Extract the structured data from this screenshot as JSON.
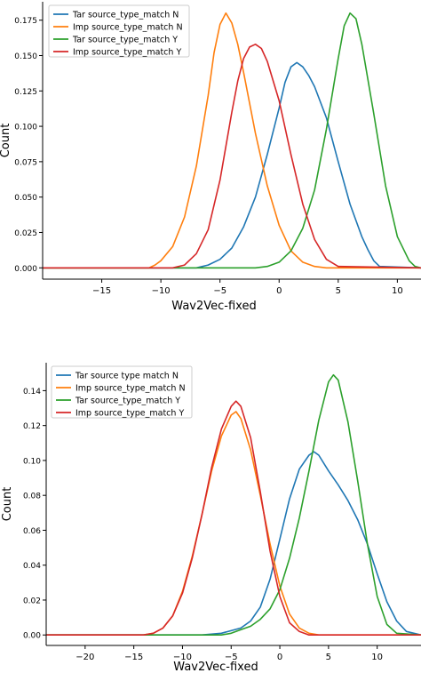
{
  "chart_data": [
    {
      "type": "line",
      "xlabel": "Wav2Vec-fixed",
      "ylabel": "Count",
      "xlim": [
        -20,
        12
      ],
      "ylim": [
        -0.008,
        0.188
      ],
      "xticks": [
        -15,
        -10,
        -5,
        0,
        5,
        10
      ],
      "xtick_labels": [
        "−15",
        "−10",
        "−5",
        "0",
        "5",
        "10"
      ],
      "yticks": [
        0.0,
        0.025,
        0.05,
        0.075,
        0.1,
        0.125,
        0.15,
        0.175
      ],
      "ytick_labels": [
        "0.000",
        "0.025",
        "0.050",
        "0.075",
        "0.100",
        "0.125",
        "0.150",
        "0.175"
      ],
      "grid": false,
      "legend_position": "top-left",
      "series": [
        {
          "name": "Tar source_type_match N",
          "color": "#1f77b4",
          "x": [
            -20,
            -7,
            -6,
            -5,
            -4,
            -3,
            -2,
            -1,
            0,
            0.5,
            1,
            1.5,
            2,
            2.5,
            3,
            4,
            5,
            6,
            7,
            7.5,
            8,
            8.5,
            12
          ],
          "y": [
            0,
            0,
            0.002,
            0.006,
            0.014,
            0.029,
            0.05,
            0.08,
            0.113,
            0.131,
            0.142,
            0.145,
            0.142,
            0.136,
            0.128,
            0.106,
            0.075,
            0.045,
            0.022,
            0.013,
            0.005,
            0.001,
            0
          ]
        },
        {
          "name": "Imp source_type_match N",
          "color": "#ff7f0e",
          "x": [
            -20,
            -11,
            -10.5,
            -10,
            -9,
            -8,
            -7,
            -6,
            -5.5,
            -5,
            -4.5,
            -4,
            -3.5,
            -3,
            -2,
            -1,
            0,
            1,
            2,
            3,
            4,
            12
          ],
          "y": [
            0,
            0,
            0.002,
            0.005,
            0.015,
            0.036,
            0.072,
            0.122,
            0.152,
            0.172,
            0.18,
            0.173,
            0.158,
            0.138,
            0.095,
            0.058,
            0.03,
            0.012,
            0.004,
            0.001,
            0,
            0
          ]
        },
        {
          "name": "Tar source_type_match Y",
          "color": "#2ca02c",
          "x": [
            -20,
            -2,
            -1,
            0,
            1,
            2,
            3,
            4,
            5,
            5.5,
            6,
            6.5,
            7,
            8,
            9,
            10,
            11,
            11.5,
            12
          ],
          "y": [
            0,
            0,
            0.001,
            0.004,
            0.012,
            0.028,
            0.055,
            0.098,
            0.148,
            0.171,
            0.18,
            0.176,
            0.158,
            0.109,
            0.058,
            0.022,
            0.005,
            0.001,
            0
          ]
        },
        {
          "name": "Imp source_type_match Y",
          "color": "#d62728",
          "x": [
            -20,
            -9,
            -8,
            -7,
            -6,
            -5,
            -4,
            -3.5,
            -3,
            -2.5,
            -2,
            -1.5,
            -1,
            0,
            1,
            2,
            3,
            4,
            5,
            12
          ],
          "y": [
            0,
            0,
            0.002,
            0.01,
            0.027,
            0.062,
            0.11,
            0.132,
            0.148,
            0.156,
            0.158,
            0.155,
            0.146,
            0.118,
            0.08,
            0.045,
            0.02,
            0.006,
            0.001,
            0
          ]
        }
      ]
    },
    {
      "type": "line",
      "xlabel": "Wav2Vec-fixed",
      "ylabel": "Count",
      "xlim": [
        -24,
        14.5
      ],
      "ylim": [
        -0.006,
        0.156
      ],
      "xticks": [
        -20,
        -15,
        -10,
        -5,
        0,
        5,
        10
      ],
      "xtick_labels": [
        "−20",
        "−15",
        "−10",
        "−5",
        "0",
        "5",
        "10"
      ],
      "yticks": [
        0.0,
        0.02,
        0.04,
        0.06,
        0.08,
        0.1,
        0.12,
        0.14
      ],
      "ytick_labels": [
        "0.00",
        "0.02",
        "0.04",
        "0.06",
        "0.08",
        "0.10",
        "0.12",
        "0.14"
      ],
      "grid": false,
      "legend_position": "top-left",
      "series": [
        {
          "name": "Tar source type match N",
          "color": "#1f77b4",
          "x": [
            -24,
            -8,
            -6,
            -4,
            -3,
            -2,
            -1,
            0,
            1,
            2,
            3,
            3.5,
            4,
            5,
            6,
            7,
            8,
            9,
            10,
            11,
            12,
            13,
            14.5
          ],
          "y": [
            0,
            0,
            0.001,
            0.004,
            0.008,
            0.016,
            0.032,
            0.055,
            0.078,
            0.095,
            0.103,
            0.105,
            0.103,
            0.094,
            0.086,
            0.077,
            0.066,
            0.052,
            0.035,
            0.019,
            0.008,
            0.002,
            0
          ]
        },
        {
          "name": "Imp source_type_match N",
          "color": "#ff7f0e",
          "x": [
            -24,
            -14,
            -13,
            -12,
            -11,
            -10,
            -9,
            -8,
            -7,
            -6,
            -5,
            -4.5,
            -4,
            -3,
            -2,
            -1,
            0,
            1,
            2,
            3,
            4,
            14.5
          ],
          "y": [
            0,
            0,
            0.001,
            0.004,
            0.011,
            0.025,
            0.045,
            0.069,
            0.094,
            0.114,
            0.126,
            0.128,
            0.124,
            0.106,
            0.08,
            0.052,
            0.028,
            0.012,
            0.004,
            0.001,
            0,
            0
          ]
        },
        {
          "name": "Tar source_type_match Y",
          "color": "#2ca02c",
          "x": [
            -24,
            -6,
            -5,
            -4,
            -3,
            -2,
            -1,
            0,
            1,
            2,
            3,
            4,
            5,
            5.5,
            6,
            7,
            8,
            9,
            10,
            11,
            12,
            14.5
          ],
          "y": [
            0,
            0,
            0.001,
            0.003,
            0.005,
            0.009,
            0.015,
            0.026,
            0.044,
            0.067,
            0.094,
            0.123,
            0.145,
            0.149,
            0.146,
            0.122,
            0.088,
            0.052,
            0.022,
            0.006,
            0.001,
            0
          ]
        },
        {
          "name": "Imp source_type_match Y",
          "color": "#d62728",
          "x": [
            -24,
            -14,
            -13,
            -12,
            -11,
            -10,
            -9,
            -8,
            -7,
            -6,
            -5,
            -4.5,
            -4,
            -3,
            -2,
            -1,
            0,
            1,
            2,
            3,
            14.5
          ],
          "y": [
            0,
            0,
            0.001,
            0.004,
            0.011,
            0.024,
            0.044,
            0.069,
            0.096,
            0.118,
            0.131,
            0.134,
            0.131,
            0.113,
            0.082,
            0.048,
            0.022,
            0.007,
            0.002,
            0,
            0
          ]
        }
      ]
    }
  ]
}
